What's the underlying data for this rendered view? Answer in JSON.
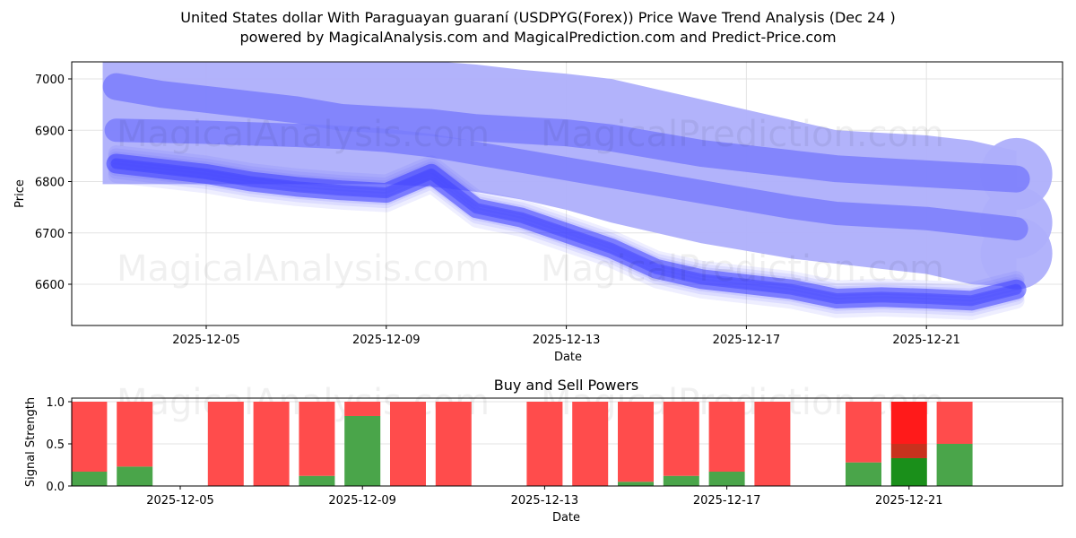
{
  "header": {
    "title": "United States dollar With Paraguayan guaraní (USDPYG(Forex)) Price Wave Trend Analysis (Dec 24 )",
    "subtitle": "powered by MagicalAnalysis.com and MagicalPrediction.com and Predict-Price.com"
  },
  "watermarks": [
    "MagicalAnalysis.com",
    "MagicalPrediction.com"
  ],
  "colors": {
    "wave_light": "#aeaffb",
    "wave_mid": "#7a7cfb",
    "price_line": "#3a3cff",
    "buy": "#4aa54a",
    "sell": "#ff4c4c",
    "buy_strong": "#1a8f1a",
    "sell_strong": "#ff1a1a",
    "grid": "#e3e3e3"
  },
  "chart_data": [
    {
      "type": "area",
      "title": "Price Wave Trend",
      "xlabel": "Date",
      "ylabel": "Price",
      "ylim": [
        6520,
        7035
      ],
      "grid": true,
      "x_ticks": [
        "2025-12-05",
        "2025-12-09",
        "2025-12-13",
        "2025-12-17",
        "2025-12-21"
      ],
      "y_ticks": [
        6600,
        6700,
        6800,
        6900,
        7000
      ],
      "x_days": [
        3,
        4,
        5,
        6,
        7,
        8,
        9,
        10,
        11,
        12,
        13,
        14,
        15,
        16,
        17,
        18,
        19,
        20,
        21,
        22,
        23
      ],
      "series": [
        {
          "name": "price_wave",
          "values": [
            6835,
            6825,
            6815,
            6800,
            6790,
            6783,
            6778,
            6815,
            6748,
            6730,
            6700,
            6670,
            6630,
            6610,
            6600,
            6590,
            6572,
            6575,
            6572,
            6568,
            6590
          ]
        },
        {
          "name": "band_upper_mid",
          "values": [
            6985,
            6970,
            6960,
            6950,
            6940,
            6925,
            6920,
            6915,
            6905,
            6900,
            6895,
            6885,
            6870,
            6855,
            6845,
            6835,
            6825,
            6820,
            6815,
            6810,
            6805
          ]
        },
        {
          "name": "band_lower_mid",
          "values": [
            6900,
            6898,
            6896,
            6893,
            6890,
            6886,
            6880,
            6870,
            6855,
            6840,
            6825,
            6810,
            6795,
            6780,
            6765,
            6750,
            6738,
            6733,
            6728,
            6718,
            6708
          ]
        },
        {
          "name": "envelope_top",
          "values": [
            7040,
            7040,
            7040,
            7040,
            7040,
            7040,
            7040,
            7035,
            7028,
            7018,
            7010,
            7000,
            6980,
            6960,
            6940,
            6920,
            6900,
            6895,
            6890,
            6880,
            6860
          ]
        },
        {
          "name": "envelope_bottom",
          "values": [
            6795,
            6795,
            6795,
            6795,
            6795,
            6795,
            6795,
            6790,
            6780,
            6765,
            6745,
            6720,
            6700,
            6680,
            6665,
            6650,
            6640,
            6630,
            6620,
            6600,
            6595
          ]
        }
      ]
    },
    {
      "type": "bar",
      "title": "Buy and Sell Powers",
      "xlabel": "Date",
      "ylabel": "Signal Strength",
      "ylim": [
        0,
        1.05
      ],
      "y_ticks": [
        "0.0",
        "0.5",
        "1.0"
      ],
      "x_ticks": [
        "2025-12-05",
        "2025-12-09",
        "2025-12-13",
        "2025-12-17",
        "2025-12-21"
      ],
      "categories": [
        "2025-12-04",
        "2025-12-05",
        "2025-12-07",
        "2025-12-08",
        "2025-12-09",
        "2025-12-10",
        "2025-12-11",
        "2025-12-12",
        "2025-12-14",
        "2025-12-15",
        "2025-12-16",
        "2025-12-17",
        "2025-12-18",
        "2025-12-19",
        "2025-12-21",
        "2025-12-22",
        "2025-12-23"
      ],
      "series": [
        {
          "name": "Buy",
          "values": [
            0.17,
            0.23,
            0.0,
            0.0,
            0.12,
            0.83,
            0.0,
            0.0,
            0.0,
            0.0,
            0.05,
            0.12,
            0.17,
            0.0,
            0.28,
            0.33,
            0.5
          ]
        },
        {
          "name": "Sell",
          "values": [
            0.83,
            0.77,
            1.0,
            1.0,
            0.88,
            0.17,
            1.0,
            1.0,
            1.0,
            1.0,
            0.95,
            0.88,
            0.83,
            1.0,
            0.72,
            0.67,
            0.5
          ]
        }
      ]
    }
  ]
}
